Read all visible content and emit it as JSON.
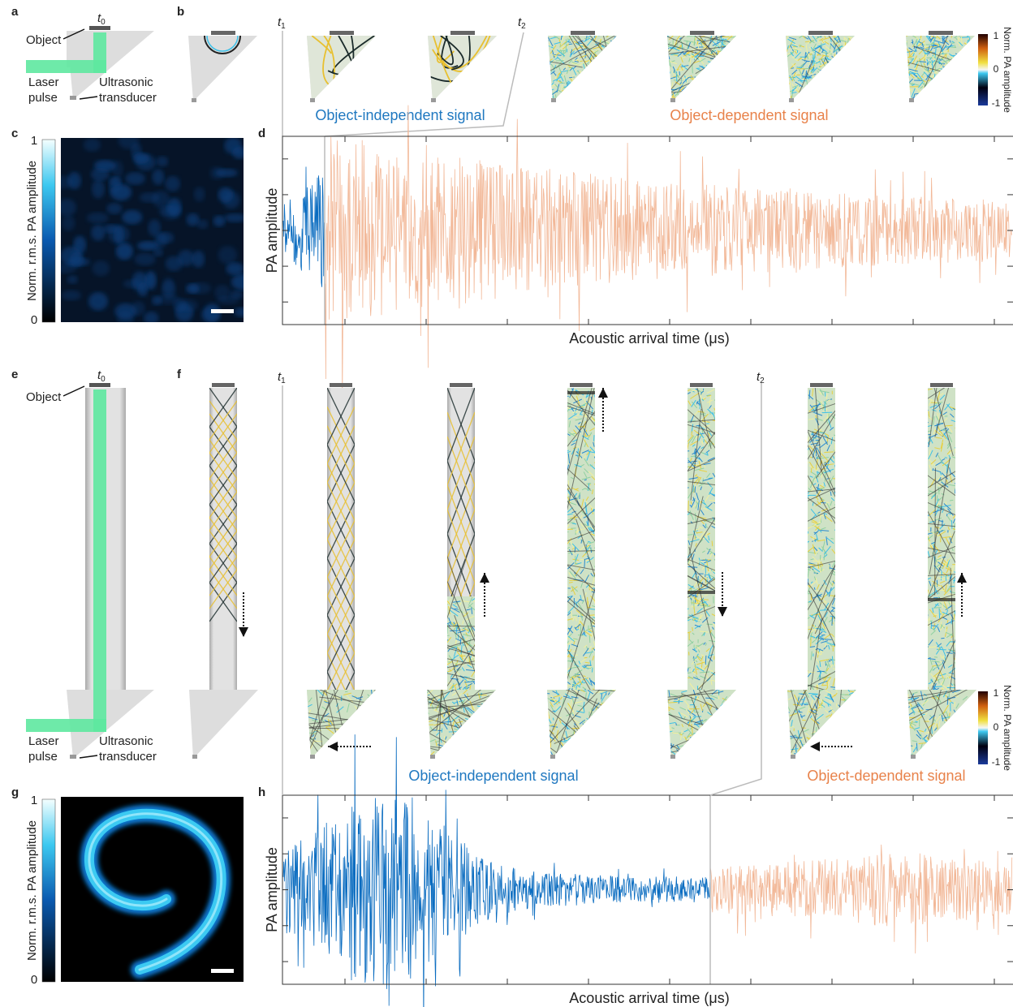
{
  "figure": {
    "panel_labels": [
      "a",
      "b",
      "c",
      "d",
      "e",
      "f",
      "g",
      "h"
    ],
    "top": {
      "t0": {
        "symbol": "t",
        "subscript": "0"
      },
      "t1": {
        "symbol": "t",
        "subscript": "1"
      },
      "t2": {
        "symbol": "t",
        "subscript": "2"
      },
      "object_label": "Object",
      "laser_label": [
        "Laser",
        "pulse"
      ],
      "transducer_label": [
        "Ultrasonic",
        "transducer"
      ],
      "independent_label": "Object-independent  signal",
      "dependent_label": "Object-dependent  signal",
      "pa_colorbar": {
        "title": "Norm. PA amplitude",
        "ticks": [
          "1",
          "0",
          "-1"
        ]
      },
      "rms_colorbar": {
        "title": "Norm. r.m.s. PA amplitude",
        "ticks": [
          "1",
          "0"
        ]
      },
      "y_label": "PA amplitude",
      "x_label": "Acoustic arrival time (μs)"
    },
    "bottom": {
      "t0": {
        "symbol": "t",
        "subscript": "0"
      },
      "t1": {
        "symbol": "t",
        "subscript": "1"
      },
      "t2": {
        "symbol": "t",
        "subscript": "2"
      },
      "object_label": "Object",
      "laser_label": [
        "Laser",
        "pulse"
      ],
      "transducer_label": [
        "Ultrasonic",
        "transducer"
      ],
      "independent_label": "Object-independent  signal",
      "dependent_label": "Object-dependent  signal",
      "pa_colorbar": {
        "title": "Norm. PA amplitude",
        "ticks": [
          "1",
          "0",
          "-1"
        ]
      },
      "rms_colorbar": {
        "title": "Norm. r.m.s. PA amplitude",
        "ticks": [
          "1",
          "0"
        ]
      },
      "y_label": "PA amplitude",
      "x_label": "Acoustic arrival time (μs)"
    }
  }
}
